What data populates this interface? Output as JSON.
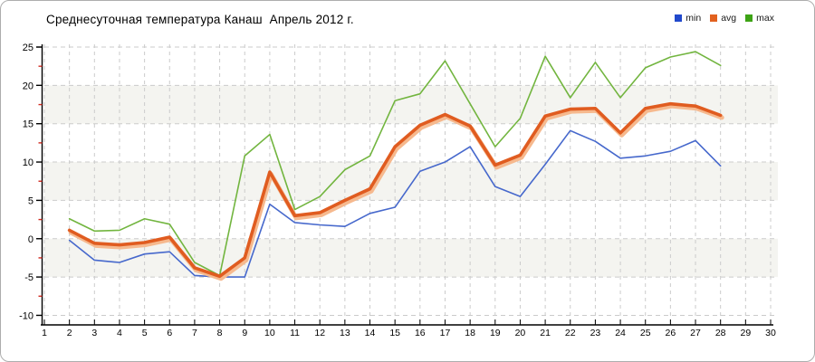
{
  "header": {
    "title": "Среднесуточная температура Канаш  Апрель 2012 г."
  },
  "legend": {
    "items": [
      {
        "label": "min",
        "color": "#2149cc"
      },
      {
        "label": "avg",
        "color": "#e2611f"
      },
      {
        "label": "max",
        "color": "#3da315"
      }
    ]
  },
  "chart_data": {
    "type": "line",
    "title": "Среднесуточная температура Канаш  Апрель 2012 г.",
    "xlabel": "",
    "ylabel": "",
    "x": [
      2,
      3,
      4,
      5,
      6,
      7,
      8,
      9,
      10,
      11,
      12,
      13,
      14,
      15,
      16,
      17,
      18,
      19,
      20,
      21,
      22,
      23,
      24,
      25,
      26,
      27,
      28
    ],
    "series": [
      {
        "name": "min",
        "color": "#4668cc",
        "width": 1.6,
        "values": [
          -0.2,
          -2.8,
          -3.1,
          -2.0,
          -1.7,
          -4.8,
          -5.0,
          -5.0,
          4.5,
          2.1,
          1.8,
          1.6,
          3.3,
          4.1,
          8.8,
          10.0,
          12.0,
          6.8,
          5.5,
          9.7,
          14.1,
          12.7,
          10.5,
          10.8,
          11.4,
          12.8,
          9.5
        ]
      },
      {
        "name": "avg",
        "color": "#e05c20",
        "width": 3.6,
        "shadow_color": "#f6b98e",
        "values": [
          1.1,
          -0.6,
          -0.8,
          -0.5,
          0.2,
          -3.8,
          -4.9,
          -2.5,
          8.7,
          3.0,
          3.4,
          5.0,
          6.5,
          12.0,
          14.8,
          16.2,
          14.7,
          9.6,
          10.9,
          16.0,
          16.9,
          17.0,
          13.8,
          17.0,
          17.6,
          17.3,
          16.1
        ]
      },
      {
        "name": "max",
        "color": "#72b53f",
        "width": 1.6,
        "values": [
          2.6,
          1.0,
          1.1,
          2.6,
          1.9,
          -3.1,
          -4.8,
          10.8,
          13.6,
          3.8,
          5.5,
          9.0,
          10.8,
          18.0,
          18.9,
          23.2,
          17.6,
          12.0,
          15.7,
          23.8,
          18.4,
          23.0,
          18.4,
          22.3,
          23.7,
          24.4,
          22.6
        ]
      }
    ],
    "xlim": [
      1,
      30
    ],
    "ylim": [
      -10,
      25
    ],
    "x_ticks": [
      1,
      2,
      3,
      4,
      5,
      6,
      7,
      8,
      9,
      10,
      11,
      12,
      13,
      14,
      15,
      16,
      17,
      18,
      19,
      20,
      21,
      22,
      23,
      24,
      25,
      26,
      27,
      28,
      29,
      30
    ],
    "y_ticks": [
      -10,
      -5,
      0,
      5,
      10,
      15,
      20,
      25
    ],
    "y_minor_ticks": [
      -7.5,
      -2.5,
      2.5,
      7.5,
      12.5,
      17.5,
      22.5
    ],
    "grid": true,
    "grid_style": "dashed",
    "band_pairs": [
      [
        20,
        15
      ],
      [
        10,
        5
      ],
      [
        0,
        -5
      ]
    ],
    "legend_position": "top-right",
    "legend_entries": [
      "min",
      "avg",
      "max"
    ]
  },
  "style": {
    "grid_color": "#cbcbcb",
    "band_color": "#f4f4f0",
    "axis_color": "#000000",
    "minor_tick_color": "#d02b20",
    "tick_label_color": "#000000",
    "border_color": "#adadad",
    "background": "#ffffff"
  }
}
